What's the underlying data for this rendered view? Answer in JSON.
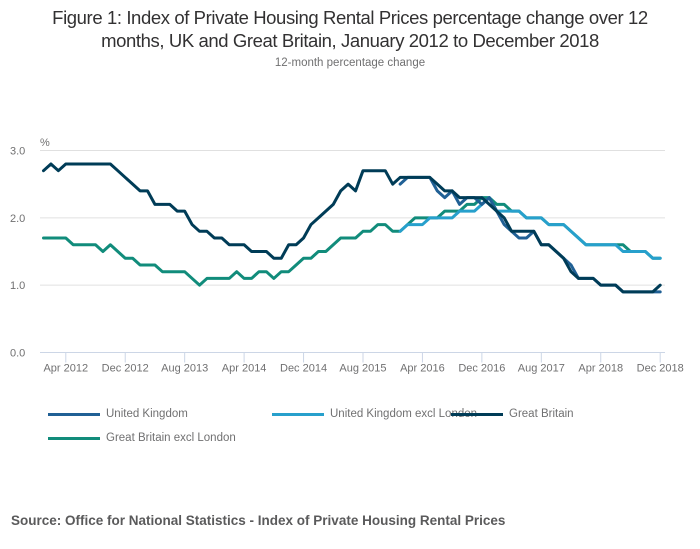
{
  "title_lines": [
    "Figure 1: Index of Private Housing Rental Prices percentage change over 12",
    "months, UK and Great Britain, January 2012 to December 2018"
  ],
  "subtitle": "12-month percentage change",
  "source": "Source: Office for National Statistics - Index of Private Housing Rental Prices",
  "chart_data": {
    "type": "line",
    "title": "Figure 1: Index of Private Housing Rental Prices percentage change over 12 months, UK and Great Britain, January 2012 to December 2018",
    "subtitle": "12-month percentage change",
    "xlabel": "",
    "ylabel": "%",
    "ylim": [
      0,
      3.0
    ],
    "yticks": [
      "0.0",
      "1.0",
      "2.0",
      "3.0"
    ],
    "ytick_values": [
      0,
      1,
      2,
      3
    ],
    "grid": true,
    "legend_position": "bottom",
    "x_start": "Jan 2012",
    "x_end": "Dec 2018",
    "xtick_labels": [
      "Apr 2012",
      "Dec 2012",
      "Aug 2013",
      "Apr 2014",
      "Dec 2014",
      "Aug 2015",
      "Apr 2016",
      "Dec 2016",
      "Aug 2017",
      "Apr 2018",
      "Dec 2018"
    ],
    "xtick_month_index": [
      3,
      11,
      19,
      27,
      35,
      43,
      51,
      59,
      67,
      75,
      83
    ],
    "series": [
      {
        "name": "United Kingdom",
        "color": "#206095",
        "start_index": 48,
        "values": [
          2.5,
          2.6,
          2.6,
          2.6,
          2.6,
          2.4,
          2.3,
          2.4,
          2.2,
          2.3,
          2.3,
          2.2,
          2.3,
          2.1,
          1.9,
          1.8,
          1.7,
          1.7,
          1.8,
          1.6,
          1.6,
          1.5,
          1.4,
          1.3,
          1.1,
          1.1,
          1.1,
          1.0,
          1.0,
          1.0,
          0.9,
          0.9,
          0.9,
          0.9,
          0.9,
          0.9
        ]
      },
      {
        "name": "United Kingdom excl London",
        "color": "#27a0cc",
        "start_index": 48,
        "values": [
          1.8,
          1.9,
          1.9,
          1.9,
          2.0,
          2.0,
          2.0,
          2.0,
          2.1,
          2.1,
          2.1,
          2.2,
          2.3,
          2.1,
          2.1,
          2.1,
          2.1,
          2.0,
          2.0,
          2.0,
          1.9,
          1.9,
          1.9,
          1.8,
          1.7,
          1.6,
          1.6,
          1.6,
          1.6,
          1.6,
          1.5,
          1.5,
          1.5,
          1.5,
          1.4,
          1.4
        ]
      },
      {
        "name": "Great Britain",
        "color": "#003c57",
        "start_index": 0,
        "values": [
          2.7,
          2.8,
          2.7,
          2.8,
          2.8,
          2.8,
          2.8,
          2.8,
          2.8,
          2.8,
          2.7,
          2.6,
          2.5,
          2.4,
          2.4,
          2.2,
          2.2,
          2.2,
          2.1,
          2.1,
          1.9,
          1.8,
          1.8,
          1.7,
          1.7,
          1.6,
          1.6,
          1.6,
          1.5,
          1.5,
          1.5,
          1.4,
          1.4,
          1.6,
          1.6,
          1.7,
          1.9,
          2.0,
          2.1,
          2.2,
          2.4,
          2.5,
          2.4,
          2.7,
          2.7,
          2.7,
          2.7,
          2.5,
          2.6,
          2.6,
          2.6,
          2.6,
          2.6,
          2.5,
          2.4,
          2.4,
          2.3,
          2.3,
          2.3,
          2.3,
          2.2,
          2.1,
          2.0,
          1.8,
          1.8,
          1.8,
          1.8,
          1.6,
          1.6,
          1.5,
          1.4,
          1.2,
          1.1,
          1.1,
          1.1,
          1.0,
          1.0,
          1.0,
          0.9,
          0.9,
          0.9,
          0.9,
          0.9,
          1.0
        ]
      },
      {
        "name": "Great Britain excl London",
        "color": "#118c7b",
        "start_index": 0,
        "values": [
          1.7,
          1.7,
          1.7,
          1.7,
          1.6,
          1.6,
          1.6,
          1.6,
          1.5,
          1.6,
          1.5,
          1.4,
          1.4,
          1.3,
          1.3,
          1.3,
          1.2,
          1.2,
          1.2,
          1.2,
          1.1,
          1.0,
          1.1,
          1.1,
          1.1,
          1.1,
          1.2,
          1.1,
          1.1,
          1.2,
          1.2,
          1.1,
          1.2,
          1.2,
          1.3,
          1.4,
          1.4,
          1.5,
          1.5,
          1.6,
          1.7,
          1.7,
          1.7,
          1.8,
          1.8,
          1.9,
          1.9,
          1.8,
          1.8,
          1.9,
          2.0,
          2.0,
          2.0,
          2.0,
          2.1,
          2.1,
          2.1,
          2.2,
          2.2,
          2.3,
          2.3,
          2.2,
          2.2,
          2.1,
          2.1,
          2.0,
          2.0,
          2.0,
          1.9,
          1.9,
          1.9,
          1.8,
          1.7,
          1.6,
          1.6,
          1.6,
          1.6,
          1.6,
          1.6,
          1.5,
          1.5,
          1.5,
          1.4,
          1.4
        ]
      }
    ]
  }
}
